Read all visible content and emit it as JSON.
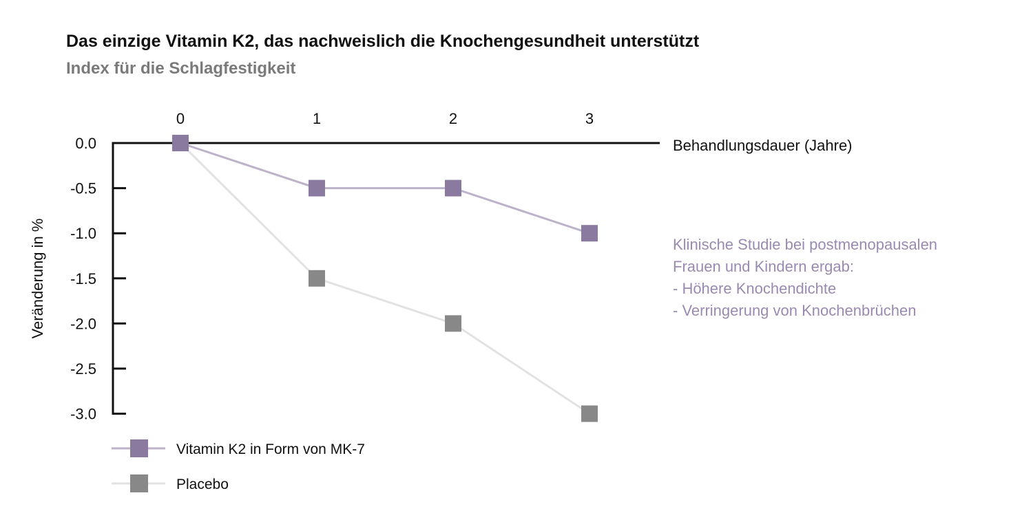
{
  "chart_data": {
    "type": "line",
    "title": "Das einzige Vitamin K2, das nachweislich die Knochengesundheit unterstützt",
    "subtitle": "Index für die Schlagfestigkeit",
    "xlabel": "Behandlungsdauer (Jahre)",
    "ylabel": "Veränderung in %",
    "x": [
      0,
      1,
      2,
      3
    ],
    "xticks": [
      "0",
      "1",
      "2",
      "3"
    ],
    "yticks": [
      "0.0",
      "-0.5",
      "-1.0",
      "-1.5",
      "-2.0",
      "-2.5",
      "-3.0"
    ],
    "ylim": [
      -3.0,
      0.0
    ],
    "xlim": [
      0,
      3
    ],
    "grid": false,
    "legend_placement": "bottom-left",
    "series": [
      {
        "name": "Vitamin K2 in Form von MK-7",
        "values": [
          0,
          -0.5,
          -0.5,
          -1.0
        ],
        "marker_color": "#8a7aa0",
        "line_color": "#bcb2ca"
      },
      {
        "name": "Placebo",
        "values": [
          0,
          -1.5,
          -2.0,
          -3.0
        ],
        "marker_color": "#888888",
        "line_color": "#e2e2e2"
      }
    ],
    "annotation": [
      "Klinische Studie bei postmenopausalen",
      "Frauen und Kindern ergab:",
      "- Höhere Knochendichte",
      "- Verringerung von Knochenbrüchen"
    ]
  }
}
